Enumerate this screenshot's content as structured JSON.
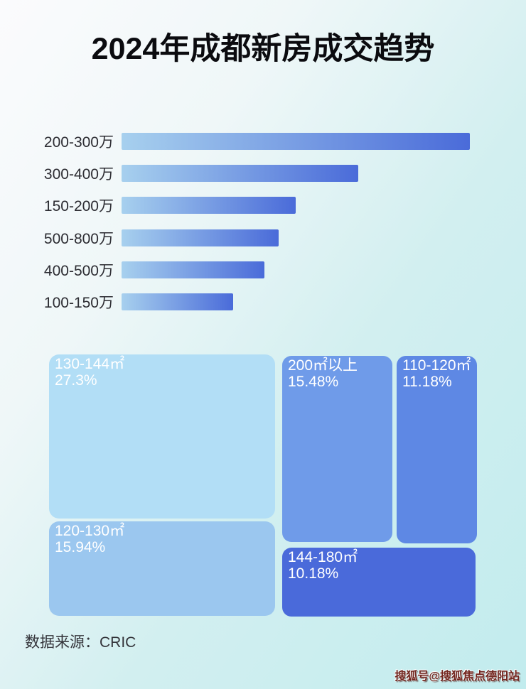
{
  "title": "2024年成都新房成交趋势",
  "source_note": "数据来源：CRIC",
  "watermark": "搜狐号@搜狐焦点德阳站",
  "colors": {
    "title_text": "#0b0b0f",
    "bar_gradient_from": "#a7d0ee",
    "bar_gradient_to": "#4a6bd9",
    "background_from": "#fbfbfd",
    "background_to": "#c2ecee",
    "watermark_text": "#72251e"
  },
  "chart_data": [
    {
      "type": "bar",
      "orientation": "horizontal",
      "title": "2024年成都新房成交趋势",
      "categories": [
        "200-300万",
        "300-400万",
        "150-200万",
        "500-800万",
        "400-500万",
        "100-150万"
      ],
      "values_relative_pct": [
        100,
        68,
        50,
        45,
        41,
        32
      ],
      "value_labels_shown": false,
      "axis_shown": false,
      "note": "bar lengths estimated relative to longest bar = 100"
    },
    {
      "type": "treemap",
      "items": [
        {
          "label": "130-144㎡",
          "value_pct": 27.3,
          "value_text": "27.3%",
          "color": "#b2def6"
        },
        {
          "label": "120-130㎡",
          "value_pct": 15.94,
          "value_text": "15.94%",
          "color": "#9bc7ef"
        },
        {
          "label": "200㎡以上",
          "value_pct": 15.48,
          "value_text": "15.48%",
          "color": "#6f9be9"
        },
        {
          "label": "110-120㎡",
          "value_pct": 11.18,
          "value_text": "11.18%",
          "color": "#5e88e4"
        },
        {
          "label": "144-180㎡",
          "value_pct": 10.18,
          "value_text": "10.18%",
          "color": "#4a6ada"
        }
      ]
    }
  ]
}
